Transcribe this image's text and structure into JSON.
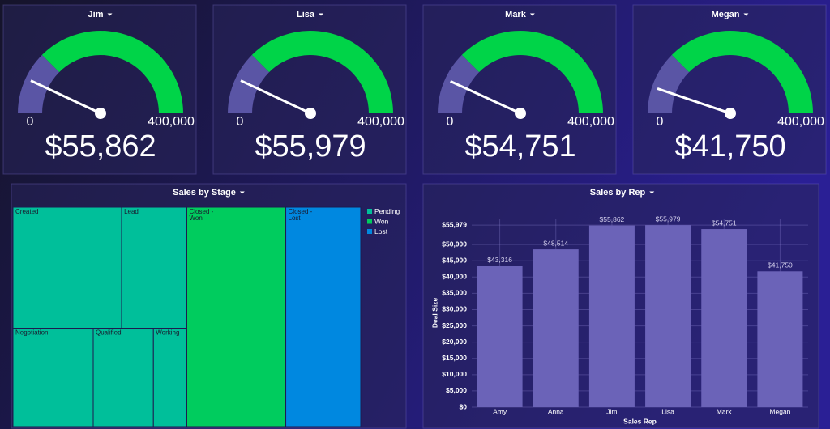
{
  "chart_data": [
    {
      "type": "gauge",
      "title": "Jim",
      "value": 55862,
      "value_label": "$55,862",
      "lim": [
        0,
        400000
      ],
      "ticks": [
        0,
        {
          "value": 400000,
          "label": "400,000"
        }
      ],
      "bands": [
        {
          "from": 0,
          "to": 100000,
          "color": "#5a55a5"
        },
        {
          "from": 100000,
          "to": 400000,
          "color": "#00d448"
        }
      ]
    },
    {
      "type": "gauge",
      "title": "Lisa",
      "value": 55979,
      "value_label": "$55,979",
      "lim": [
        0,
        400000
      ],
      "ticks": [
        0,
        {
          "value": 400000,
          "label": "400,000"
        }
      ],
      "bands": [
        {
          "from": 0,
          "to": 100000,
          "color": "#5a55a5"
        },
        {
          "from": 100000,
          "to": 400000,
          "color": "#00d448"
        }
      ]
    },
    {
      "type": "gauge",
      "title": "Mark",
      "value": 54751,
      "value_label": "$54,751",
      "lim": [
        0,
        400000
      ],
      "ticks": [
        0,
        {
          "value": 400000,
          "label": "400,000"
        }
      ],
      "bands": [
        {
          "from": 0,
          "to": 100000,
          "color": "#5a55a5"
        },
        {
          "from": 100000,
          "to": 400000,
          "color": "#00d448"
        }
      ]
    },
    {
      "type": "gauge",
      "title": "Megan",
      "value": 41750,
      "value_label": "$41,750",
      "lim": [
        0,
        400000
      ],
      "ticks": [
        0,
        {
          "value": 400000,
          "label": "400,000"
        }
      ],
      "bands": [
        {
          "from": 0,
          "to": 100000,
          "color": "#5a55a5"
        },
        {
          "from": 100000,
          "to": 400000,
          "color": "#00d448"
        }
      ]
    },
    {
      "type": "treemap",
      "title": "Sales by Stage",
      "series": [
        {
          "name": "Pending",
          "color": "#00bf9a",
          "labels": [
            "Created",
            "Lead",
            "Negotiation",
            "Qualified",
            "Working"
          ],
          "values": [
            20,
            12,
            12,
            9,
            5
          ]
        },
        {
          "name": "Won",
          "color": "#00cc5e",
          "labels": [
            "Closed -\nWon"
          ],
          "values": [
            33
          ]
        },
        {
          "name": "Lost",
          "color": "#0088e0",
          "labels": [
            "Closed -\nLost"
          ],
          "values": [
            25
          ]
        }
      ]
    },
    {
      "type": "bar",
      "title": "Sales by Rep",
      "xlabel": "Sales Rep",
      "ylabel": "Deal Size",
      "color": "#6b63b8",
      "grid": true,
      "categories": [
        "Amy",
        "Anna",
        "Jim",
        "Lisa",
        "Mark",
        "Megan"
      ],
      "values": [
        43316,
        48514,
        55862,
        55979,
        54751,
        41750
      ],
      "value_labels": [
        "$43,316",
        "$48,514",
        "$55,862",
        "$55,979",
        "$54,751",
        "$41,750"
      ],
      "ylim": [
        0,
        58000
      ],
      "yticks": [
        {
          "value": 0,
          "label": "$0"
        },
        {
          "value": 5000,
          "label": "$5,000"
        },
        {
          "value": 10000,
          "label": "$10,000"
        },
        {
          "value": 15000,
          "label": "$15,000"
        },
        {
          "value": 20000,
          "label": "$20,000"
        },
        {
          "value": 25000,
          "label": "$25,000"
        },
        {
          "value": 30000,
          "label": "$30,000"
        },
        {
          "value": 35000,
          "label": "$35,000"
        },
        {
          "value": 40000,
          "label": "$40,000"
        },
        {
          "value": 45000,
          "label": "$45,000"
        },
        {
          "value": 50000,
          "label": "$50,000"
        },
        {
          "value": 55979,
          "label": "$55,979"
        }
      ]
    }
  ]
}
